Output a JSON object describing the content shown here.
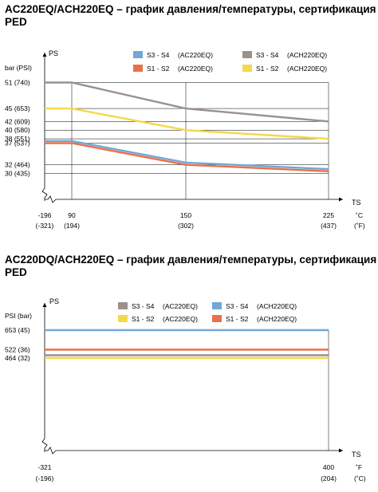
{
  "chart_data": [
    {
      "type": "line",
      "title": "AC220EQ/ACH220EQ – график давления/температуры, сертификация PED",
      "y_axis_name": "PS",
      "y_unit_label": "bar (PSI)",
      "x_axis_name": "TS",
      "x_unit_label_1": "˚C",
      "x_unit_label_2": "(˚F)",
      "y_ticks": [
        {
          "v": 51,
          "label": "51  (740)"
        },
        {
          "v": 45,
          "label": "45  (653)"
        },
        {
          "v": 42,
          "label": "42  (609)"
        },
        {
          "v": 40,
          "label": "40  (580)"
        },
        {
          "v": 38,
          "label": "38  (551)"
        },
        {
          "v": 37,
          "label": "37  (537)"
        },
        {
          "v": 32,
          "label": "32  (464)"
        },
        {
          "v": 30,
          "label": "30  (435)"
        }
      ],
      "x_ticks": [
        {
          "v": -196,
          "label1": "-196",
          "label2": "(-321)"
        },
        {
          "v": 90,
          "label1": "90",
          "label2": "(194)"
        },
        {
          "v": 150,
          "label1": "150",
          "label2": "(302)"
        },
        {
          "v": 225,
          "label1": "225",
          "label2": "(437)"
        }
      ],
      "ylim": [
        30,
        51
      ],
      "series": [
        {
          "name": "S3 - S4",
          "note": "(ACH220EQ)",
          "color": "#9b918b",
          "x": [
            -196,
            90,
            150,
            225
          ],
          "y": [
            51,
            51,
            45,
            42
          ]
        },
        {
          "name": "S1 - S2",
          "note": "(ACH220EQ)",
          "color": "#f5d84a",
          "x": [
            -196,
            90,
            150,
            225
          ],
          "y": [
            45,
            45,
            40,
            38
          ]
        },
        {
          "name": "S3 - S4",
          "note": "(AC220EQ)",
          "color": "#72a7d6",
          "x": [
            -196,
            90,
            150,
            225
          ],
          "y": [
            37.5,
            37.5,
            32.5,
            31
          ]
        },
        {
          "name": "S1 - S2",
          "note": "(AC220EQ)",
          "color": "#e8714a",
          "x": [
            -196,
            90,
            150,
            225
          ],
          "y": [
            37,
            37,
            32,
            30.5
          ]
        }
      ],
      "legend": [
        {
          "name": "S3 - S4",
          "note": "(AC220EQ)",
          "color": "#72a7d6"
        },
        {
          "name": "S3 - S4",
          "note": "(ACH220EQ)",
          "color": "#9b918b"
        },
        {
          "name": "S1 - S2",
          "note": "(AC220EQ)",
          "color": "#e8714a"
        },
        {
          "name": "S1 - S2",
          "note": "(ACH220EQ)",
          "color": "#f5d84a"
        }
      ]
    },
    {
      "type": "line",
      "title": "AC220DQ/ACH220EQ – график давления/температуры, сертификация PED",
      "y_axis_name": "PS",
      "y_unit_label": "PSI (bar)",
      "x_axis_name": "TS",
      "x_unit_label_1": "˚F",
      "x_unit_label_2": "(˚C)",
      "y_ticks": [
        {
          "v": 653,
          "label": "653 (45)"
        },
        {
          "v": 522,
          "label": "522 (36)"
        },
        {
          "v": 464,
          "label": "464 (32)"
        }
      ],
      "x_ticks": [
        {
          "v": -321,
          "label1": "-321",
          "label2": "(-196)"
        },
        {
          "v": 400,
          "label1": "400",
          "label2": "(204)"
        }
      ],
      "series": [
        {
          "name": "S3 - S4",
          "note": "(ACH220EQ)",
          "color": "#72a7d6",
          "x": [
            -321,
            400
          ],
          "y": [
            653,
            653
          ]
        },
        {
          "name": "S1 - S2",
          "note": "(ACH220EQ)",
          "color": "#e8714a",
          "x": [
            -321,
            400
          ],
          "y": [
            522,
            522
          ]
        },
        {
          "name": "S3 - S4",
          "note": "(AC220EQ)",
          "color": "#9b918b",
          "x": [
            -321,
            400
          ],
          "y": [
            470,
            470
          ]
        },
        {
          "name": "S1 - S2",
          "note": "(AC220EQ)",
          "color": "#f5d84a",
          "x": [
            -321,
            400
          ],
          "y": [
            464,
            464
          ]
        }
      ],
      "legend": [
        {
          "name": "S3 - S4",
          "note": "(AC220EQ)",
          "color": "#9b918b"
        },
        {
          "name": "S3 - S4",
          "note": "(ACH220EQ)",
          "color": "#72a7d6"
        },
        {
          "name": "S1 - S2",
          "note": "(AC220EQ)",
          "color": "#f5d84a"
        },
        {
          "name": "S1 - S2",
          "note": "(ACH220EQ)",
          "color": "#e8714a"
        }
      ]
    }
  ]
}
